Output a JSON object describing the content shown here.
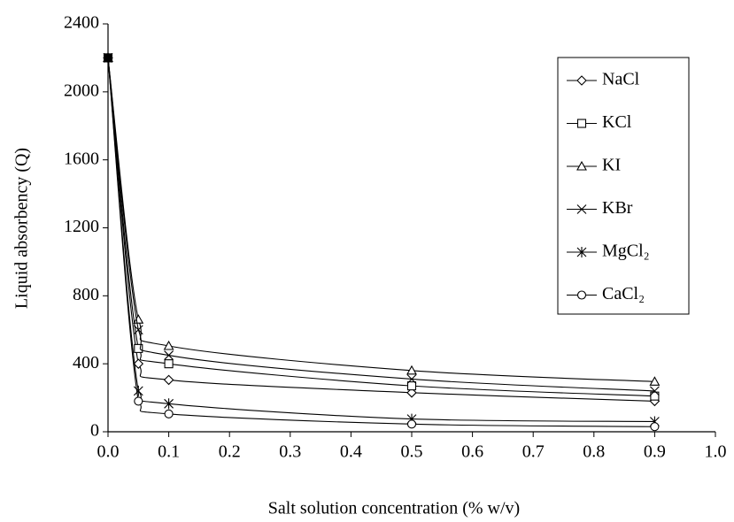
{
  "chart_data": {
    "type": "line",
    "xlabel": "Salt solution concentration (% w/v)",
    "ylabel": "Liquid absorbency (Q)",
    "x": [
      0,
      0.05,
      0.1,
      0.5,
      0.9
    ],
    "series": [
      {
        "name": "NaCl",
        "color": "#000000",
        "marker": "diamond",
        "values": [
          2200,
          400,
          305,
          230,
          180
        ]
      },
      {
        "name": "KCl",
        "color": "#000000",
        "marker": "square",
        "values": [
          2200,
          490,
          400,
          270,
          210
        ]
      },
      {
        "name": "KI",
        "color": "#000000",
        "marker": "triangle",
        "values": [
          2200,
          660,
          505,
          360,
          295
        ]
      },
      {
        "name": "KBr",
        "color": "#000000",
        "marker": "x",
        "values": [
          2200,
          600,
          450,
          310,
          240
        ]
      },
      {
        "name": "MgCl₂",
        "color": "#000000",
        "marker": "star",
        "values": [
          2200,
          240,
          165,
          75,
          60
        ]
      },
      {
        "name": "CaCl₂",
        "color": "#000000",
        "marker": "circle",
        "values": [
          2200,
          180,
          105,
          45,
          30
        ]
      }
    ],
    "xlim": [
      0,
      1
    ],
    "xticks": [
      {
        "value": 0,
        "label": "0.0"
      },
      {
        "value": 0.1,
        "label": "0.1"
      },
      {
        "value": 0.2,
        "label": "0.2"
      },
      {
        "value": 0.3,
        "label": "0.3"
      },
      {
        "value": 0.4,
        "label": "0.4"
      },
      {
        "value": 0.5,
        "label": "0.5"
      },
      {
        "value": 0.6,
        "label": "0.6"
      },
      {
        "value": 0.7,
        "label": "0.7"
      },
      {
        "value": 0.8,
        "label": "0.8"
      },
      {
        "value": 0.9,
        "label": "0.9"
      },
      {
        "value": 1,
        "label": "1.0"
      }
    ],
    "ylim": [
      0,
      2400
    ],
    "yticks": [
      0,
      400,
      800,
      1200,
      1600,
      2000,
      2400
    ],
    "grid": false,
    "legend": "upper right"
  }
}
